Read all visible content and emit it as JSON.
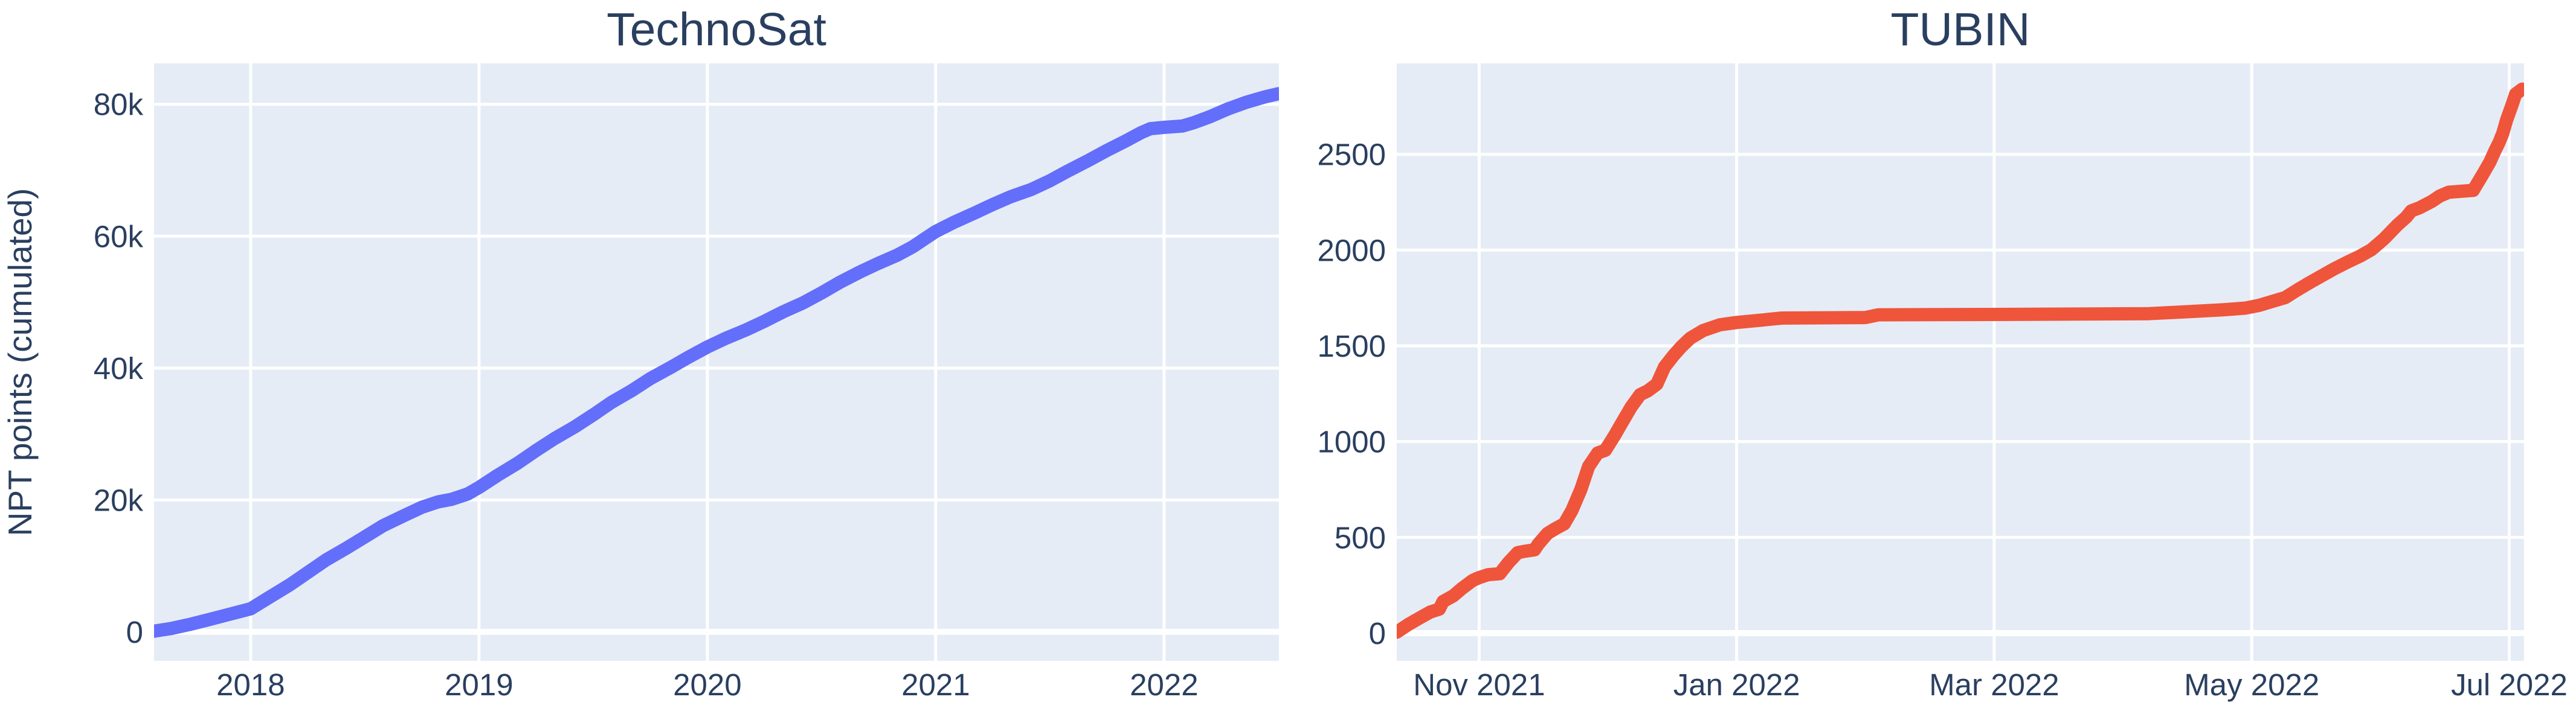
{
  "figure": {
    "background_color": "#ffffff",
    "plot_background_color": "#E5ECF6",
    "gridline_color": "#ffffff",
    "text_color": "#2a3f5f"
  },
  "chart_data": [
    {
      "type": "line",
      "title": "TechnoSat",
      "ylabel": "NPT points (cumulated)",
      "xlabel": "",
      "line_color": "#636EFA",
      "line_width": 22,
      "grid": true,
      "legend": "none",
      "xlim": [
        2017.577,
        2022.503
      ],
      "ylim": [
        -4400,
        86200
      ],
      "xticks": [
        {
          "v": 2018,
          "label": "2018"
        },
        {
          "v": 2019,
          "label": "2019"
        },
        {
          "v": 2020,
          "label": "2020"
        },
        {
          "v": 2021,
          "label": "2021"
        },
        {
          "v": 2022,
          "label": "2022"
        }
      ],
      "yticks": [
        {
          "v": 0,
          "label": "0"
        },
        {
          "v": 20000,
          "label": "20k"
        },
        {
          "v": 40000,
          "label": "40k"
        },
        {
          "v": 60000,
          "label": "60k"
        },
        {
          "v": 80000,
          "label": "80k"
        }
      ],
      "x": [
        2017.577,
        2017.65,
        2017.73,
        2017.81,
        2017.9,
        2018.0,
        2018.08,
        2018.17,
        2018.25,
        2018.33,
        2018.42,
        2018.5,
        2018.58,
        2018.67,
        2018.75,
        2018.82,
        2018.88,
        2018.95,
        2019.0,
        2019.08,
        2019.17,
        2019.25,
        2019.33,
        2019.42,
        2019.5,
        2019.58,
        2019.67,
        2019.75,
        2019.84,
        2019.92,
        2020.0,
        2020.08,
        2020.17,
        2020.25,
        2020.33,
        2020.42,
        2020.5,
        2020.58,
        2020.67,
        2020.75,
        2020.83,
        2020.9,
        2020.96,
        2021.0,
        2021.08,
        2021.17,
        2021.25,
        2021.33,
        2021.42,
        2021.5,
        2021.58,
        2021.67,
        2021.75,
        2021.83,
        2021.9,
        2021.94,
        2022.0,
        2022.08,
        2022.13,
        2022.2,
        2022.28,
        2022.36,
        2022.44,
        2022.5
      ],
      "y": [
        100,
        500,
        1100,
        1800,
        2600,
        3500,
        5200,
        7100,
        9000,
        10900,
        12700,
        14400,
        16100,
        17600,
        18900,
        19700,
        20100,
        20900,
        21900,
        23700,
        25600,
        27500,
        29300,
        31100,
        32900,
        34800,
        36600,
        38400,
        40100,
        41700,
        43200,
        44500,
        45800,
        47100,
        48500,
        49900,
        51400,
        53000,
        54600,
        55900,
        57100,
        58400,
        59800,
        60700,
        62100,
        63500,
        64800,
        66000,
        67100,
        68400,
        69900,
        71500,
        73000,
        74400,
        75700,
        76300,
        76500,
        76700,
        77200,
        78100,
        79300,
        80300,
        81100,
        81600
      ]
    },
    {
      "type": "line",
      "title": "TUBIN",
      "ylabel": "",
      "xlabel": "",
      "line_color": "#EF553B",
      "line_width": 22,
      "grid": true,
      "legend": "none",
      "x_unit": "months since 2021-11-01",
      "xlim": [
        -0.64,
        8.115
      ],
      "ylim": [
        -145,
        2975
      ],
      "xticks": [
        {
          "v": 0,
          "label": "Nov 2021"
        },
        {
          "v": 2,
          "label": "Jan 2022"
        },
        {
          "v": 4,
          "label": "Mar 2022"
        },
        {
          "v": 6,
          "label": "May 2022"
        },
        {
          "v": 8,
          "label": "Jul 2022"
        }
      ],
      "yticks": [
        {
          "v": 0,
          "label": "0"
        },
        {
          "v": 500,
          "label": "500"
        },
        {
          "v": 1000,
          "label": "1000"
        },
        {
          "v": 1500,
          "label": "1500"
        },
        {
          "v": 2000,
          "label": "2000"
        },
        {
          "v": 2500,
          "label": "2500"
        }
      ],
      "x": [
        -0.64,
        -0.55,
        -0.46,
        -0.38,
        -0.31,
        -0.28,
        -0.2,
        -0.13,
        -0.05,
        0.0,
        0.07,
        0.16,
        0.23,
        0.3,
        0.36,
        0.43,
        0.46,
        0.53,
        0.59,
        0.66,
        0.72,
        0.79,
        0.85,
        0.92,
        0.98,
        1.05,
        1.11,
        1.18,
        1.25,
        1.31,
        1.38,
        1.44,
        1.51,
        1.57,
        1.64,
        1.74,
        1.87,
        2.0,
        2.16,
        2.35,
        3.0,
        3.1,
        4.0,
        5.2,
        5.5,
        5.77,
        5.95,
        6.06,
        6.16,
        6.26,
        6.35,
        6.45,
        6.55,
        6.64,
        6.74,
        6.84,
        6.93,
        7.03,
        7.13,
        7.2,
        7.24,
        7.3,
        7.4,
        7.46,
        7.53,
        7.72,
        7.79,
        7.85,
        7.89,
        7.92,
        7.95,
        7.98,
        8.02,
        8.05,
        8.1
      ],
      "y": [
        5,
        45,
        80,
        110,
        125,
        165,
        195,
        235,
        275,
        290,
        305,
        310,
        370,
        420,
        428,
        435,
        465,
        520,
        545,
        570,
        640,
        750,
        870,
        940,
        955,
        1030,
        1100,
        1180,
        1245,
        1265,
        1300,
        1390,
        1450,
        1495,
        1540,
        1580,
        1610,
        1622,
        1632,
        1645,
        1648,
        1662,
        1664,
        1668,
        1678,
        1688,
        1697,
        1712,
        1732,
        1752,
        1790,
        1830,
        1868,
        1902,
        1936,
        1968,
        2002,
        2060,
        2130,
        2172,
        2205,
        2220,
        2255,
        2282,
        2302,
        2312,
        2390,
        2460,
        2520,
        2560,
        2610,
        2680,
        2755,
        2815,
        2840
      ]
    }
  ]
}
